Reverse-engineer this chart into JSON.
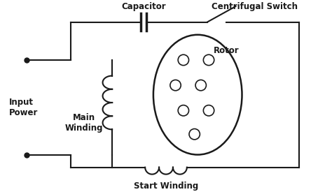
{
  "bg_color": "#ffffff",
  "line_color": "#1a1a1a",
  "text_color": "#1a1a1a",
  "labels": {
    "capacitor": "Capacitor",
    "centrifugal": "Centrifugal Switch",
    "rotor": "Rotor",
    "input_power": "Input\nPower",
    "main_winding": "Main\nWinding",
    "start_winding": "Start Winding"
  },
  "fig_width": 4.74,
  "fig_height": 2.75,
  "dpi": 100
}
